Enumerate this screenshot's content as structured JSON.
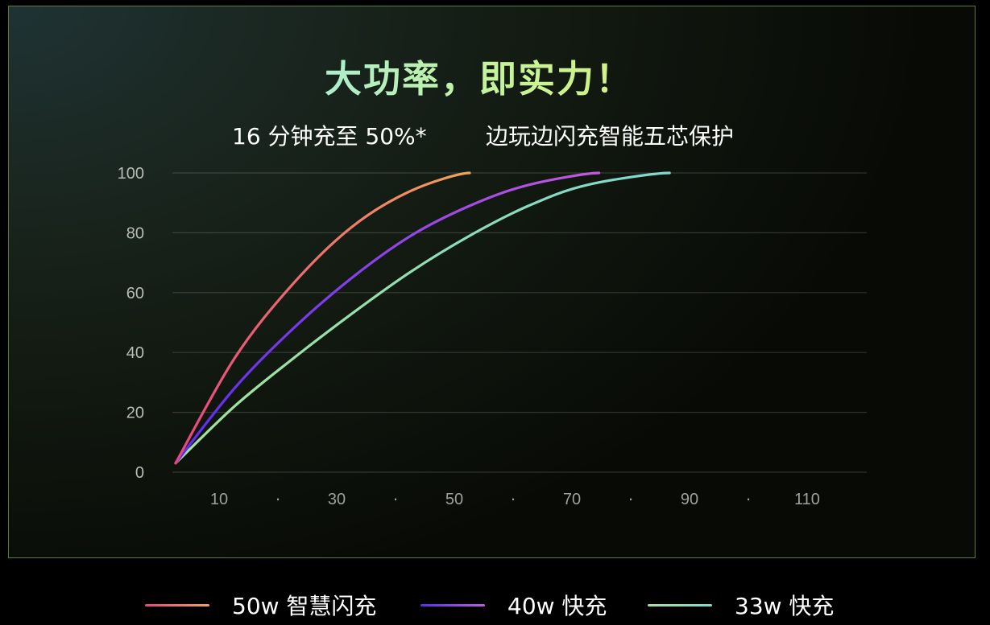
{
  "header": {
    "title": "大功率，即实力！",
    "subtitle_left": "16 分钟充至 50%*",
    "subtitle_right": "边玩边闪充智能五芯保护"
  },
  "chart_data": {
    "type": "line",
    "title": "大功率，即实力！",
    "xlabel": "",
    "ylabel": "",
    "xlim": [
      0,
      120
    ],
    "ylim": [
      0,
      100
    ],
    "x_tick_labels": [
      "10",
      "·",
      "30",
      "·",
      "50",
      "·",
      "70",
      "·",
      "90",
      "·",
      "110"
    ],
    "x_tick_values": [
      10,
      20,
      30,
      40,
      50,
      60,
      70,
      80,
      90,
      100,
      110
    ],
    "y_tick_values": [
      0,
      20,
      40,
      60,
      80,
      100
    ],
    "grid": "horizontal",
    "legend_position": "bottom",
    "series": [
      {
        "name": "50w 智慧闪充",
        "color_start": "#e8457e",
        "color_end": "#f0a35a",
        "points": [
          [
            0,
            3
          ],
          [
            10,
            38
          ],
          [
            20,
            63
          ],
          [
            30,
            82
          ],
          [
            40,
            94
          ],
          [
            50,
            100
          ]
        ]
      },
      {
        "name": "40w 快充",
        "color_start": "#5b2cf0",
        "color_end": "#c25ae0",
        "points": [
          [
            0,
            3
          ],
          [
            10,
            28
          ],
          [
            20,
            48
          ],
          [
            30,
            65
          ],
          [
            40,
            79
          ],
          [
            50,
            89
          ],
          [
            60,
            96
          ],
          [
            72,
            100
          ]
        ]
      },
      {
        "name": "33w 快充",
        "color_start": "#a3e39a",
        "color_end": "#7fd8d0",
        "points": [
          [
            0,
            3
          ],
          [
            10,
            22
          ],
          [
            20,
            38
          ],
          [
            30,
            53
          ],
          [
            40,
            67
          ],
          [
            50,
            79
          ],
          [
            60,
            89
          ],
          [
            70,
            96
          ],
          [
            84,
            100
          ]
        ]
      }
    ]
  }
}
